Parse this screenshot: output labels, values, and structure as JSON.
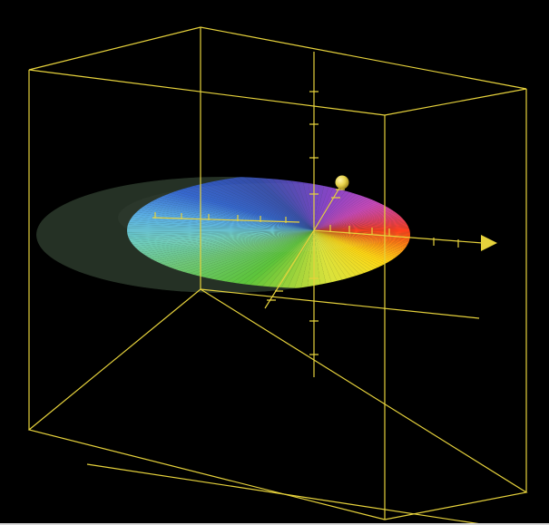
{
  "scene": {
    "background_color": "#000000",
    "wire_color": "#e6d23c",
    "disc_gradient_stops": [
      "#ff2a00",
      "#ff7a00",
      "#ffd400",
      "#d8e02c",
      "#4fbf2a",
      "#62c06a",
      "#63c8b6",
      "#49a8e2",
      "#1f55c8",
      "#233d9f",
      "#7b2fc0",
      "#c335b0",
      "#e02a56",
      "#ff2a00"
    ],
    "icons": {
      "arrow": "arrowhead-icon",
      "sphere": "sphere-handle-icon"
    }
  }
}
